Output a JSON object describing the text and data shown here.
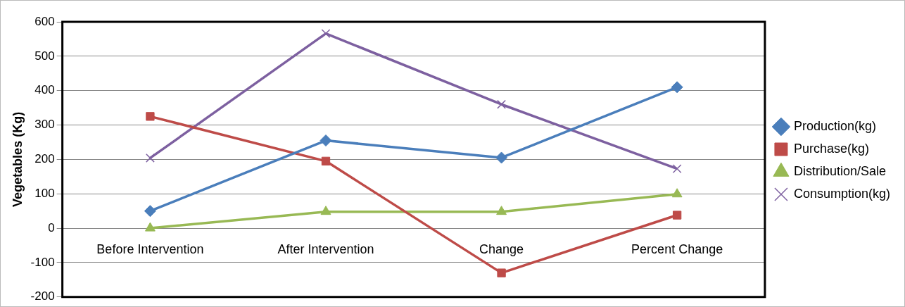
{
  "chart_data": {
    "type": "line",
    "ylabel": "Vegetables (Kg)",
    "categories": [
      "Before Intervention",
      "After Intervention",
      "Change",
      "Percent Change"
    ],
    "ylim": [
      -200,
      600
    ],
    "yticks": [
      -200,
      -100,
      0,
      100,
      200,
      300,
      400,
      500,
      600
    ],
    "grid": "y",
    "legend": "right",
    "line_style": "solid",
    "series": [
      {
        "name": "Production(kg)",
        "color": "#4a7ebb",
        "marker": "diamond",
        "values": [
          50,
          255,
          205,
          410
        ]
      },
      {
        "name": "Purchase(kg)",
        "color": "#be4b48",
        "marker": "square",
        "values": [
          325,
          195,
          -130,
          38
        ]
      },
      {
        "name": "Distribution/Sale",
        "color": "#98b954",
        "marker": "triangle",
        "values": [
          0,
          48,
          48,
          99
        ]
      },
      {
        "name": "Consumption(kg)",
        "color": "#7d60a0",
        "marker": "cross",
        "values": [
          204,
          566,
          360,
          173
        ]
      }
    ]
  }
}
